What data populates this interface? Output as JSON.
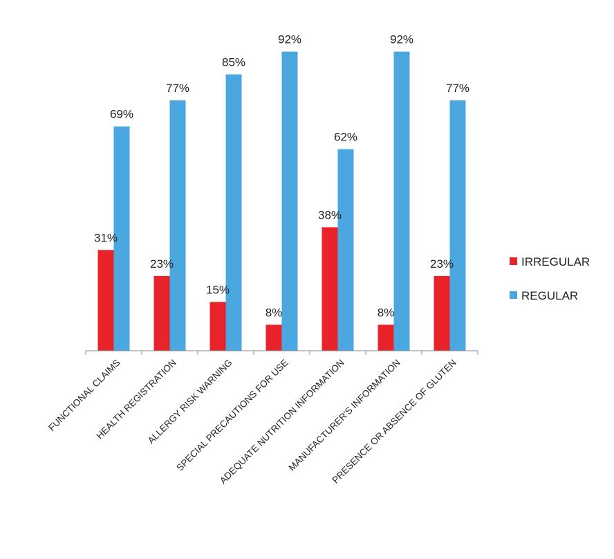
{
  "chart_data": {
    "type": "bar",
    "categories": [
      "FUNCTIONAL CLAIMS",
      "HEALTH REGISTRATION",
      "ALLERGY RISK WARNING",
      "SPECIAL PRECAUTIONS FOR USE",
      "ADEQUATE NUTRITION INFORMATION",
      "MANUFACTURER'S INFORMATION",
      "PRESENCE OR ABSENCE OF GLUTEN"
    ],
    "series": [
      {
        "name": "IRREGULAR",
        "color": "#e8232a",
        "values": [
          31,
          23,
          15,
          8,
          38,
          8,
          23
        ],
        "labels": [
          "31%",
          "23%",
          "15%",
          "8%",
          "38%",
          "8%",
          "23%"
        ]
      },
      {
        "name": "REGULAR",
        "color": "#4aa7df",
        "values": [
          69,
          77,
          85,
          92,
          62,
          92,
          77
        ],
        "labels": [
          "69%",
          "77%",
          "85%",
          "92%",
          "62%",
          "92%",
          "77%"
        ]
      }
    ],
    "title": "",
    "xlabel": "",
    "ylabel": "",
    "ylim": [
      0,
      100
    ],
    "grid": false,
    "legend": "right"
  }
}
